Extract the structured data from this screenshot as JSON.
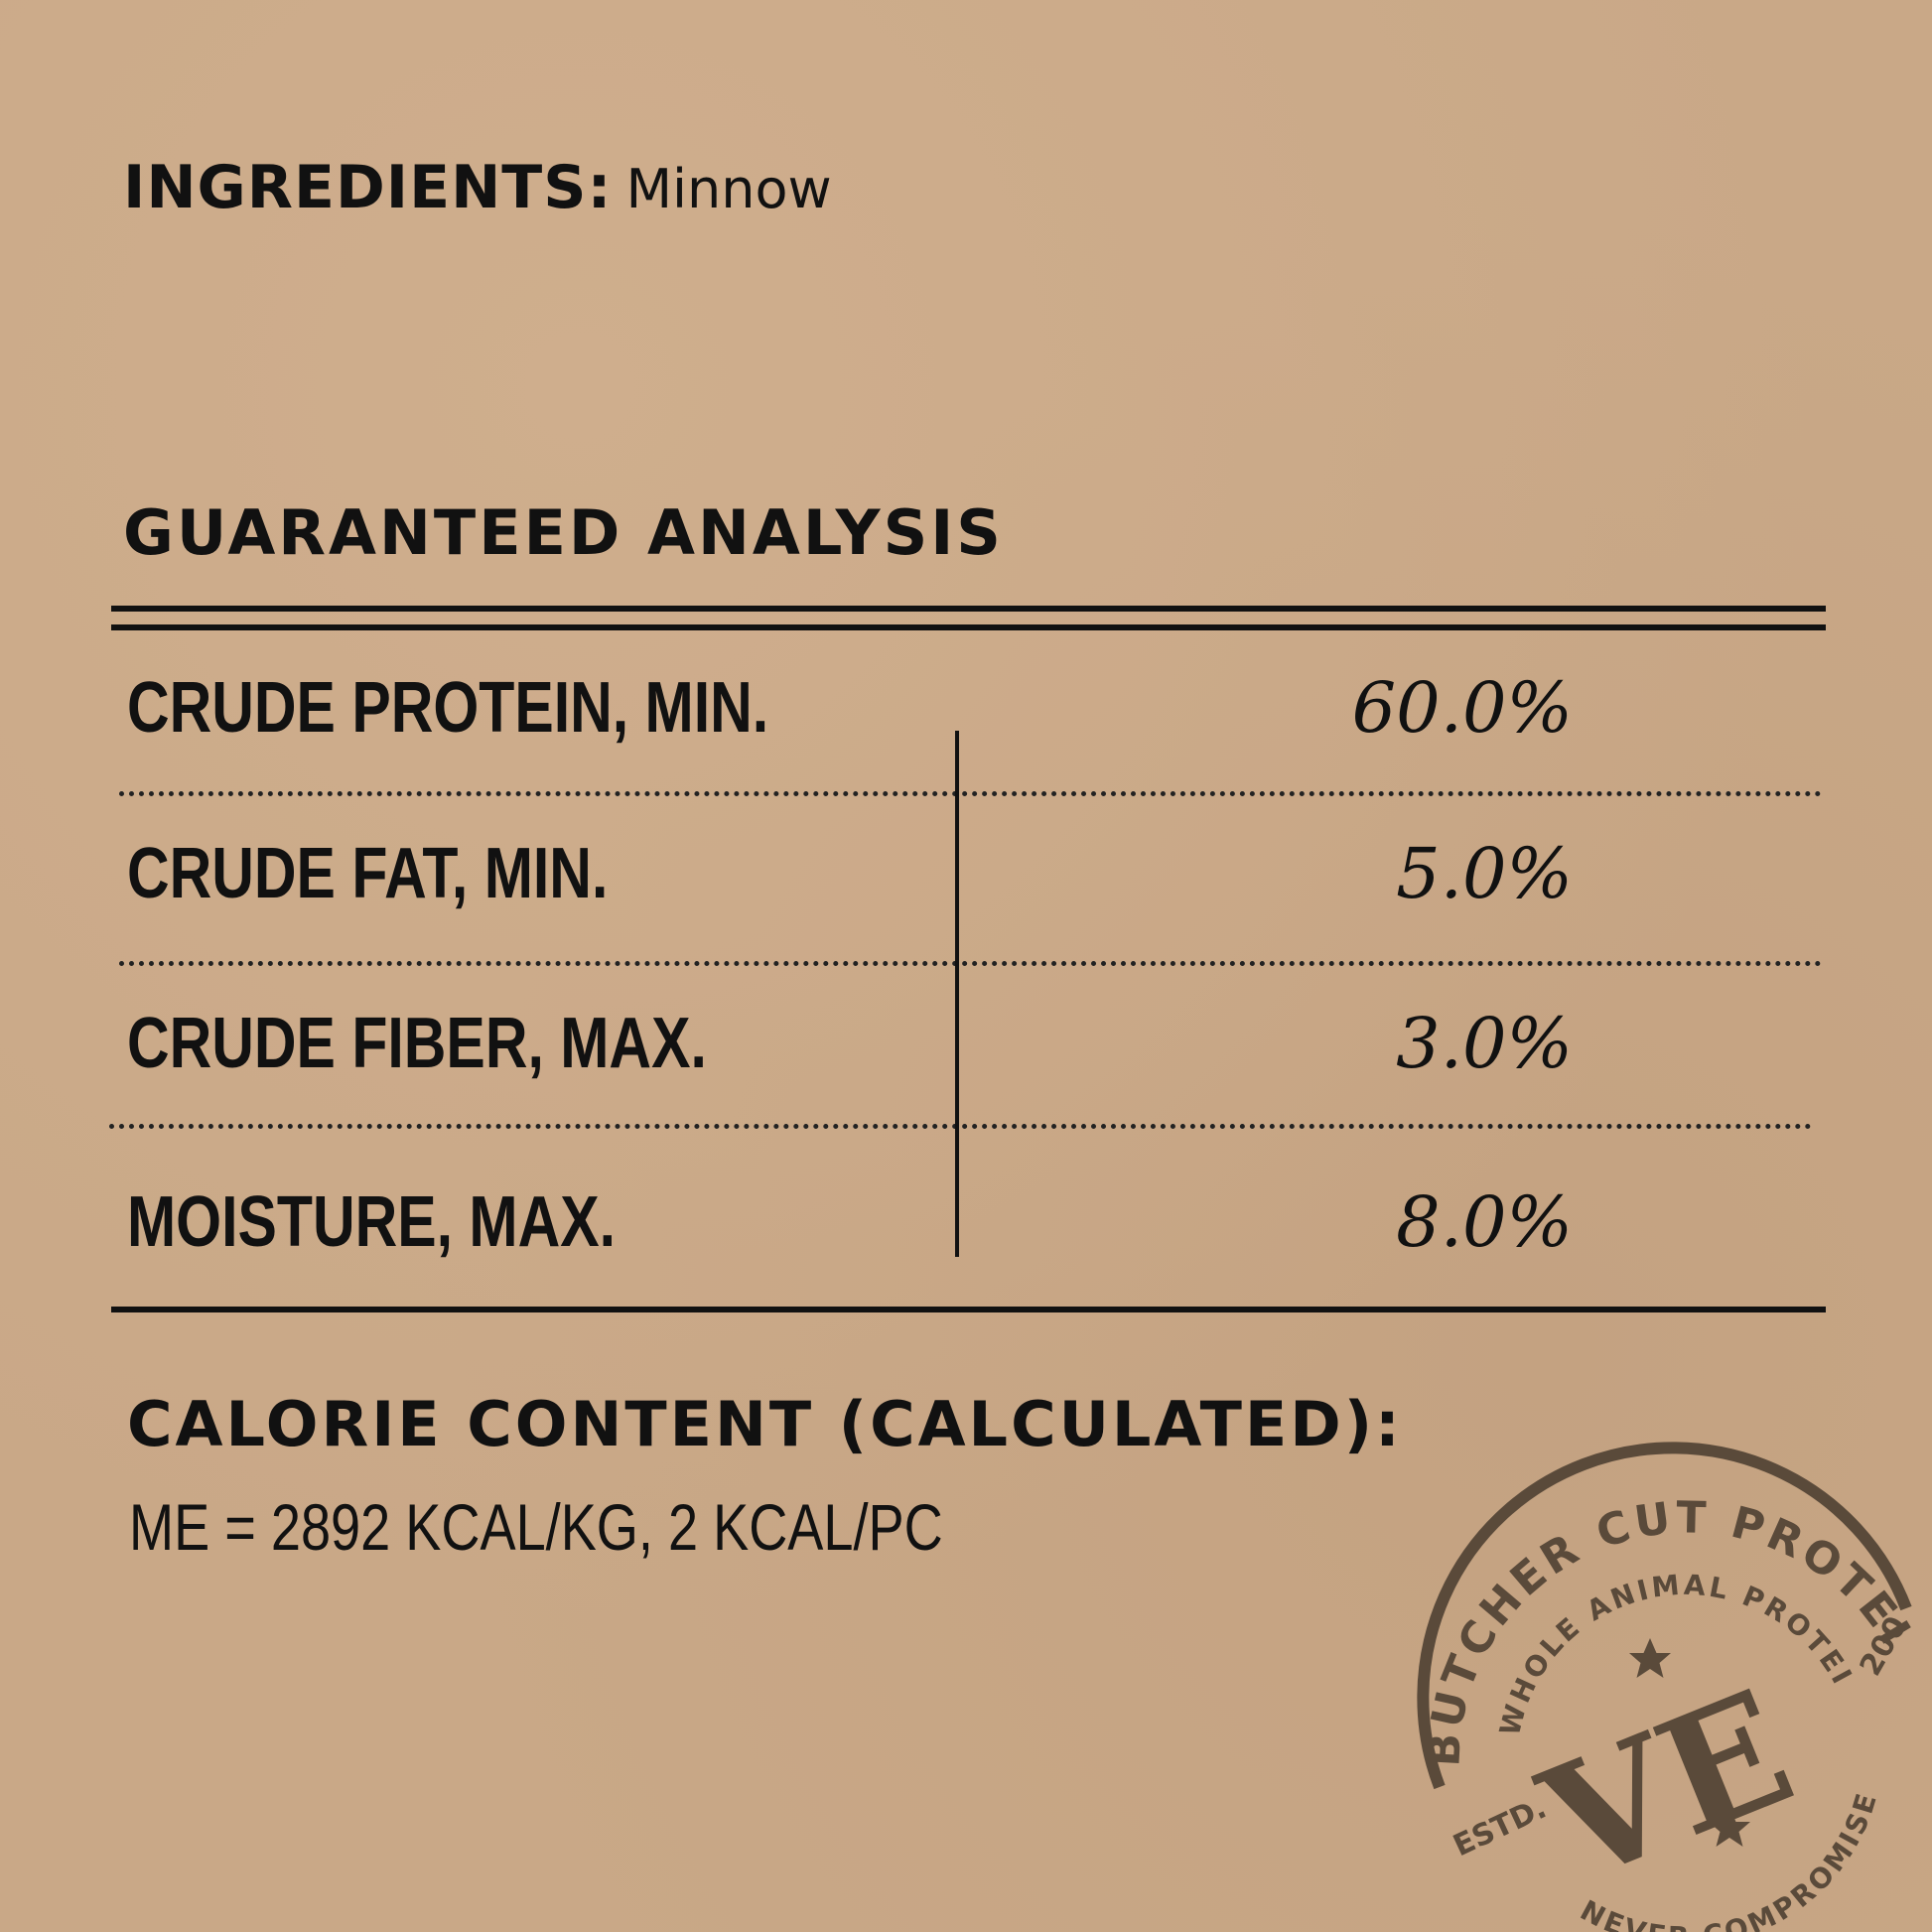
{
  "ingredients": {
    "label": "INGREDIENTS:",
    "value": "Minnow"
  },
  "analysis": {
    "title": "GUARANTEED ANALYSIS",
    "rows": [
      {
        "label": "CRUDE PROTEIN, MIN.",
        "value": "60.0%"
      },
      {
        "label": "CRUDE FAT, MIN.",
        "value": "5.0%"
      },
      {
        "label": "CRUDE FIBER, MAX.",
        "value": "3.0%"
      },
      {
        "label": "MOISTURE, MAX.",
        "value": "8.0%"
      }
    ]
  },
  "calorie": {
    "title": "CALORIE CONTENT (CALCULATED):",
    "value": "ME = 2892 KCAL/KG, 2 KCAL/PC"
  },
  "stamp": {
    "outer": "BUTCHER CUT PROTEIN",
    "inner": "WHOLE ANIMAL PROTEIN",
    "bottom": "NEVER COMPROMISE",
    "estd": "ESTD.",
    "year": "200",
    "logo": "VE",
    "color": "#5a4a3a"
  }
}
